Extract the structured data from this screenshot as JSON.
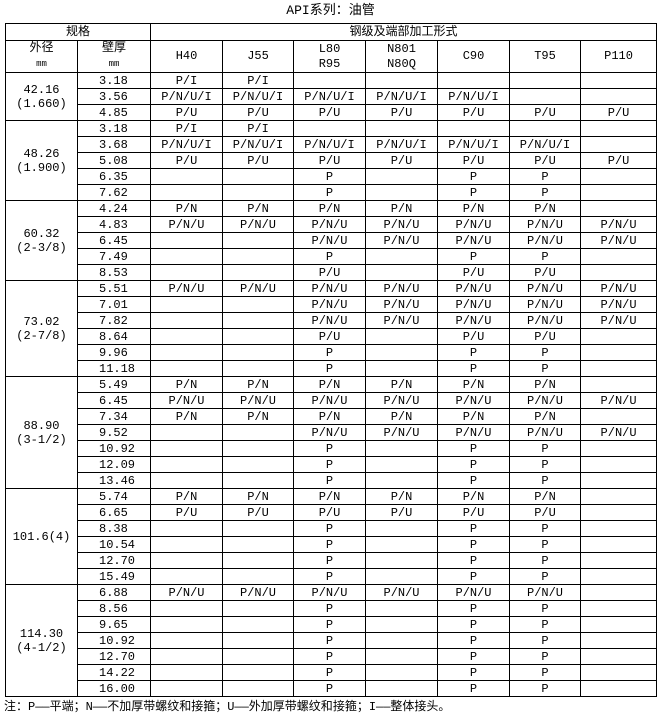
{
  "title": "API系列：油管",
  "header": {
    "spec": "规格",
    "grade_group": "钢级及端部加工形式",
    "od": "外径",
    "od_unit": "mm",
    "wt": "壁厚",
    "wt_unit": "mm",
    "grades": [
      [
        "H40",
        ""
      ],
      [
        "J55",
        ""
      ],
      [
        "L80",
        "R95"
      ],
      [
        "N801",
        "N80Q"
      ],
      [
        "C90",
        ""
      ],
      [
        "T95",
        ""
      ],
      [
        "P110",
        ""
      ]
    ]
  },
  "groups": [
    {
      "od": "42.16",
      "inch": "(1.660)",
      "rows": [
        [
          "3.18",
          "P/I",
          "P/I",
          "",
          "",
          "",
          "",
          ""
        ],
        [
          "3.56",
          "P/N/U/I",
          "P/N/U/I",
          "P/N/U/I",
          "P/N/U/I",
          "P/N/U/I",
          "",
          ""
        ],
        [
          "4.85",
          "P/U",
          "P/U",
          "P/U",
          "P/U",
          "P/U",
          "P/U",
          "P/U"
        ]
      ]
    },
    {
      "od": "48.26",
      "inch": "(1.900)",
      "rows": [
        [
          "3.18",
          "P/I",
          "P/I",
          "",
          "",
          "",
          "",
          ""
        ],
        [
          "3.68",
          "P/N/U/I",
          "P/N/U/I",
          "P/N/U/I",
          "P/N/U/I",
          "P/N/U/I",
          "P/N/U/I",
          ""
        ],
        [
          "5.08",
          "P/U",
          "P/U",
          "P/U",
          "P/U",
          "P/U",
          "P/U",
          "P/U"
        ],
        [
          "6.35",
          "",
          "",
          "P",
          "",
          "P",
          "P",
          ""
        ],
        [
          "7.62",
          "",
          "",
          "P",
          "",
          "P",
          "P",
          ""
        ]
      ]
    },
    {
      "od": "60.32",
      "inch": "(2-3/8)",
      "rows": [
        [
          "4.24",
          "P/N",
          "P/N",
          "P/N",
          "P/N",
          "P/N",
          "P/N",
          ""
        ],
        [
          "4.83",
          "P/N/U",
          "P/N/U",
          "P/N/U",
          "P/N/U",
          "P/N/U",
          "P/N/U",
          "P/N/U"
        ],
        [
          "6.45",
          "",
          "",
          "P/N/U",
          "P/N/U",
          "P/N/U",
          "P/N/U",
          "P/N/U"
        ],
        [
          "7.49",
          "",
          "",
          "P",
          "",
          "P",
          "P",
          ""
        ],
        [
          "8.53",
          "",
          "",
          "P/U",
          "",
          "P/U",
          "P/U",
          ""
        ]
      ]
    },
    {
      "od": "73.02",
      "inch": "(2-7/8)",
      "rows": [
        [
          "5.51",
          "P/N/U",
          "P/N/U",
          "P/N/U",
          "P/N/U",
          "P/N/U",
          "P/N/U",
          "P/N/U"
        ],
        [
          "7.01",
          "",
          "",
          "P/N/U",
          "P/N/U",
          "P/N/U",
          "P/N/U",
          "P/N/U"
        ],
        [
          "7.82",
          "",
          "",
          "P/N/U",
          "P/N/U",
          "P/N/U",
          "P/N/U",
          "P/N/U"
        ],
        [
          "8.64",
          "",
          "",
          "P/U",
          "",
          "P/U",
          "P/U",
          ""
        ],
        [
          "9.96",
          "",
          "",
          "P",
          "",
          "P",
          "P",
          ""
        ],
        [
          "11.18",
          "",
          "",
          "P",
          "",
          "P",
          "P",
          ""
        ]
      ]
    },
    {
      "od": "88.90",
      "inch": "(3-1/2)",
      "rows": [
        [
          "5.49",
          "P/N",
          "P/N",
          "P/N",
          "P/N",
          "P/N",
          "P/N",
          ""
        ],
        [
          "6.45",
          "P/N/U",
          "P/N/U",
          "P/N/U",
          "P/N/U",
          "P/N/U",
          "P/N/U",
          "P/N/U"
        ],
        [
          "7.34",
          "P/N",
          "P/N",
          "P/N",
          "P/N",
          "P/N",
          "P/N",
          ""
        ],
        [
          "9.52",
          "",
          "",
          "P/N/U",
          "P/N/U",
          "P/N/U",
          "P/N/U",
          "P/N/U"
        ],
        [
          "10.92",
          "",
          "",
          "P",
          "",
          "P",
          "P",
          ""
        ],
        [
          "12.09",
          "",
          "",
          "P",
          "",
          "P",
          "P",
          ""
        ],
        [
          "13.46",
          "",
          "",
          "P",
          "",
          "P",
          "P",
          ""
        ]
      ]
    },
    {
      "od": "101.6(4)",
      "inch": "",
      "rows": [
        [
          "5.74",
          "P/N",
          "P/N",
          "P/N",
          "P/N",
          "P/N",
          "P/N",
          ""
        ],
        [
          "6.65",
          "P/U",
          "P/U",
          "P/U",
          "P/U",
          "P/U",
          "P/U",
          ""
        ],
        [
          "8.38",
          "",
          "",
          "P",
          "",
          "P",
          "P",
          ""
        ],
        [
          "10.54",
          "",
          "",
          "P",
          "",
          "P",
          "P",
          ""
        ],
        [
          "12.70",
          "",
          "",
          "P",
          "",
          "P",
          "P",
          ""
        ],
        [
          "15.49",
          "",
          "",
          "P",
          "",
          "P",
          "P",
          ""
        ]
      ]
    },
    {
      "od": "114.30",
      "inch": "(4-1/2)",
      "rows": [
        [
          "6.88",
          "P/N/U",
          "P/N/U",
          "P/N/U",
          "P/N/U",
          "P/N/U",
          "P/N/U",
          ""
        ],
        [
          "8.56",
          "",
          "",
          "P",
          "",
          "P",
          "P",
          ""
        ],
        [
          "9.65",
          "",
          "",
          "P",
          "",
          "P",
          "P",
          ""
        ],
        [
          "10.92",
          "",
          "",
          "P",
          "",
          "P",
          "P",
          ""
        ],
        [
          "12.70",
          "",
          "",
          "P",
          "",
          "P",
          "P",
          ""
        ],
        [
          "14.22",
          "",
          "",
          "P",
          "",
          "P",
          "P",
          ""
        ],
        [
          "16.00",
          "",
          "",
          "P",
          "",
          "P",
          "P",
          ""
        ]
      ]
    }
  ],
  "note": "注：P——平端；N——不加厚带螺纹和接箍；U——外加厚带螺纹和接箍；I——整体接头。"
}
